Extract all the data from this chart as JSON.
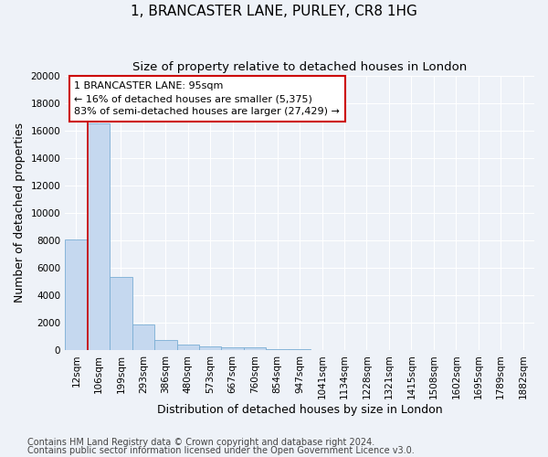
{
  "title": "1, BRANCASTER LANE, PURLEY, CR8 1HG",
  "subtitle": "Size of property relative to detached houses in London",
  "xlabel": "Distribution of detached houses by size in London",
  "ylabel": "Number of detached properties",
  "annotation_line1": "1 BRANCASTER LANE: 95sqm",
  "annotation_line2": "← 16% of detached houses are smaller (5,375)",
  "annotation_line3": "83% of semi-detached houses are larger (27,429) →",
  "footer1": "Contains HM Land Registry data © Crown copyright and database right 2024.",
  "footer2": "Contains public sector information licensed under the Open Government Licence v3.0.",
  "bin_labels": [
    "12sqm",
    "106sqm",
    "199sqm",
    "293sqm",
    "386sqm",
    "480sqm",
    "573sqm",
    "667sqm",
    "760sqm",
    "854sqm",
    "947sqm",
    "1041sqm",
    "1134sqm",
    "1228sqm",
    "1321sqm",
    "1415sqm",
    "1508sqm",
    "1602sqm",
    "1695sqm",
    "1789sqm",
    "1882sqm"
  ],
  "bar_values": [
    8050,
    16550,
    5300,
    1850,
    750,
    360,
    240,
    210,
    160,
    80,
    35,
    15,
    8,
    4,
    3,
    2,
    2,
    1,
    1,
    1,
    0
  ],
  "bar_color": "#c5d8ef",
  "bar_edge_color": "#7aaed4",
  "vline_color": "#cc0000",
  "vline_x_index": 1,
  "ylim": [
    0,
    20000
  ],
  "yticks": [
    0,
    2000,
    4000,
    6000,
    8000,
    10000,
    12000,
    14000,
    16000,
    18000,
    20000
  ],
  "background_color": "#eef2f8",
  "grid_color": "#ffffff",
  "annotation_box_color": "#cc0000",
  "title_fontsize": 11,
  "subtitle_fontsize": 9.5,
  "axis_label_fontsize": 9,
  "tick_fontsize": 7.5,
  "annotation_fontsize": 8,
  "footer_fontsize": 7
}
